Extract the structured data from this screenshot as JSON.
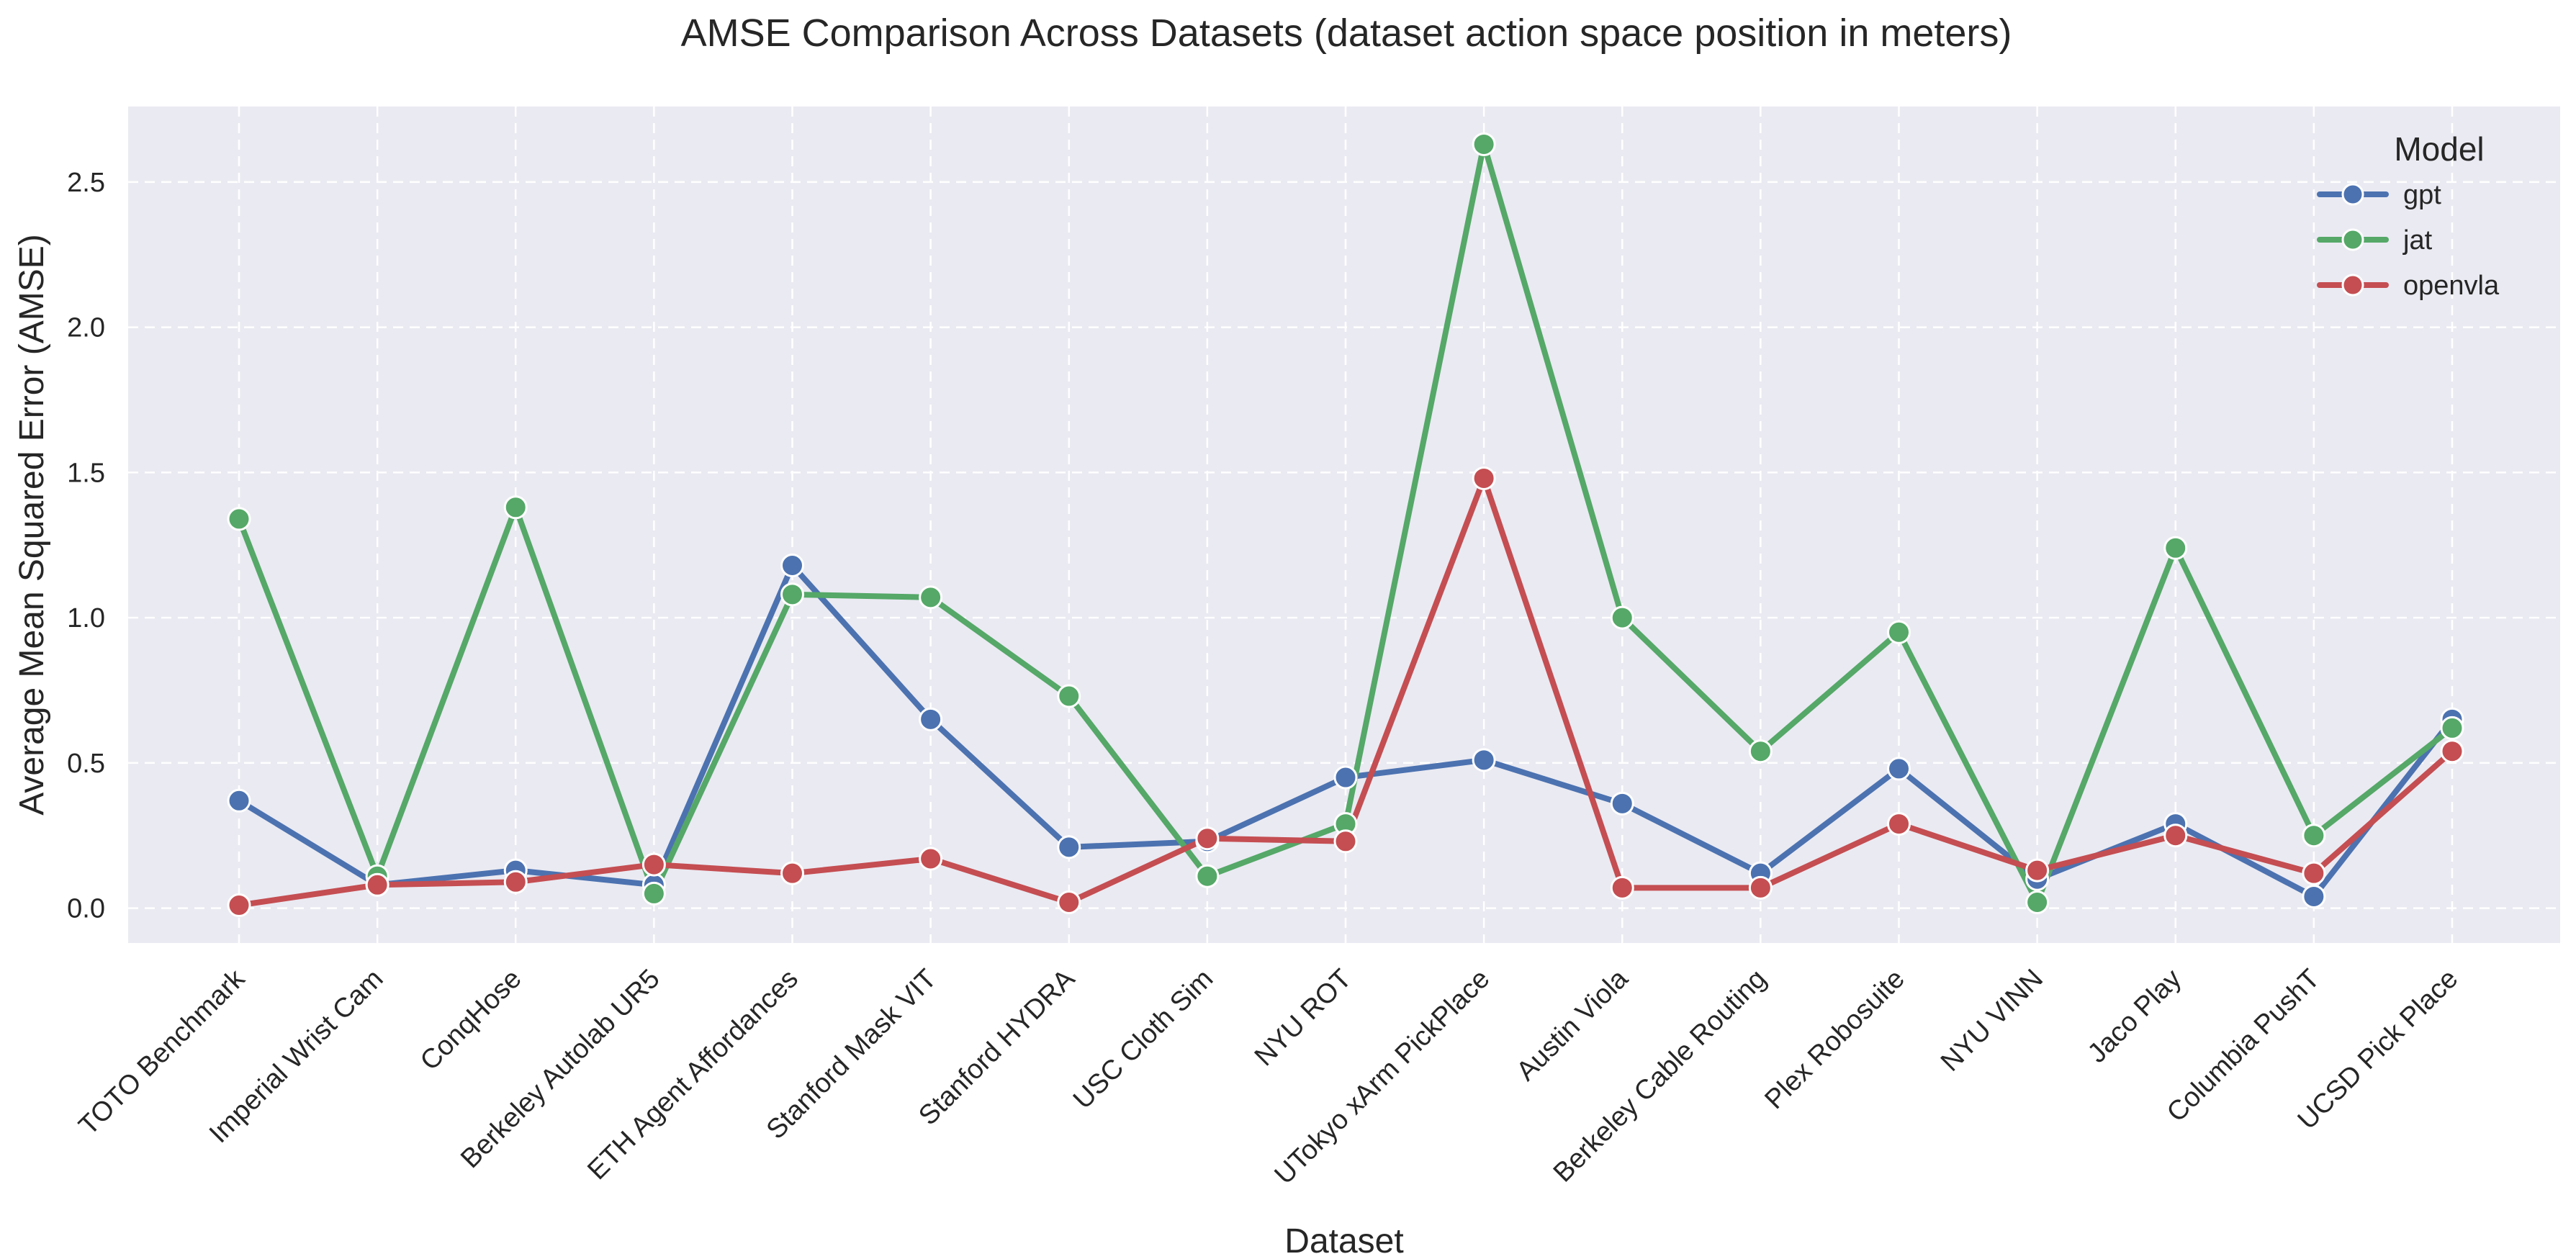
{
  "chart_data": {
    "type": "line",
    "title": "AMSE Comparison Across Datasets (dataset action space position in meters)",
    "xlabel": "Dataset",
    "ylabel": "Average Mean Squared Error (AMSE)",
    "ylim": [
      -0.12,
      2.76
    ],
    "yticks": [
      0.0,
      0.5,
      1.0,
      1.5,
      2.0,
      2.5
    ],
    "ytick_labels": [
      "0.0",
      "0.5",
      "1.0",
      "1.5",
      "2.0",
      "2.5"
    ],
    "grid": true,
    "legend": {
      "title": "Model",
      "position": "top-right"
    },
    "categories": [
      "TOTO Benchmark",
      "Imperial Wrist Cam",
      "ConqHose",
      "Berkeley Autolab UR5",
      "ETH Agent Affordances",
      "Stanford Mask VIT",
      "Stanford HYDRA",
      "USC Cloth Sim",
      "NYU ROT",
      "UTokyo xArm PickPlace",
      "Austin Viola",
      "Berkeley Cable Routing",
      "Plex Robosuite",
      "NYU VINN",
      "Jaco Play",
      "Columbia PushT",
      "UCSD Pick Place"
    ],
    "series": [
      {
        "name": "gpt",
        "color": "#4c72b0",
        "values": [
          0.37,
          0.08,
          0.13,
          0.08,
          1.18,
          0.65,
          0.21,
          0.23,
          0.45,
          0.51,
          0.36,
          0.12,
          0.48,
          0.1,
          0.29,
          0.04,
          0.65
        ]
      },
      {
        "name": "jat",
        "color": "#55a868",
        "values": [
          1.34,
          0.11,
          1.38,
          0.05,
          1.08,
          1.07,
          0.73,
          0.11,
          0.29,
          2.63,
          1.0,
          0.54,
          0.95,
          0.02,
          1.24,
          0.25,
          0.62
        ]
      },
      {
        "name": "openvla",
        "color": "#c44e52",
        "values": [
          0.01,
          0.08,
          0.09,
          0.15,
          0.12,
          0.17,
          0.02,
          0.24,
          0.23,
          1.48,
          0.07,
          0.07,
          0.29,
          0.13,
          0.25,
          0.12,
          0.54
        ]
      }
    ]
  }
}
